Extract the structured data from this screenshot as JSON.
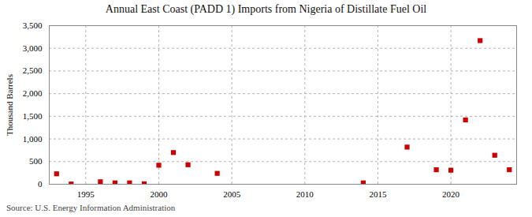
{
  "chart_data": {
    "type": "scatter",
    "title": "Annual East Coast (PADD 1) Imports from Nigeria of Distillate Fuel Oil",
    "ylabel": "Thousand Barrels",
    "source": "Source: U.S. Energy Information Administration",
    "x": [
      1993,
      1994,
      1996,
      1997,
      1998,
      1999,
      2000,
      2001,
      2002,
      2004,
      2014,
      2017,
      2019,
      2020,
      2021,
      2022,
      2023,
      2024
    ],
    "values": [
      230,
      5,
      55,
      30,
      30,
      10,
      420,
      700,
      430,
      240,
      30,
      820,
      320,
      310,
      1420,
      3170,
      640,
      320
    ],
    "color": "#cc0000",
    "marker": "square",
    "xlim": [
      1992.5,
      2024.5
    ],
    "xticks": [
      1995,
      2000,
      2005,
      2010,
      2015,
      2020
    ],
    "ylim": [
      0,
      3500
    ],
    "yticks": [
      0,
      500,
      {
        "value": 1000,
        "label": "1,000"
      },
      {
        "value": 1500,
        "label": "1,500"
      },
      {
        "value": 2000,
        "label": "2,000"
      },
      {
        "value": 2500,
        "label": "2,500"
      },
      {
        "value": 3000,
        "label": "3,000"
      },
      {
        "value": 3500,
        "label": "3,500"
      }
    ],
    "grid": true
  }
}
